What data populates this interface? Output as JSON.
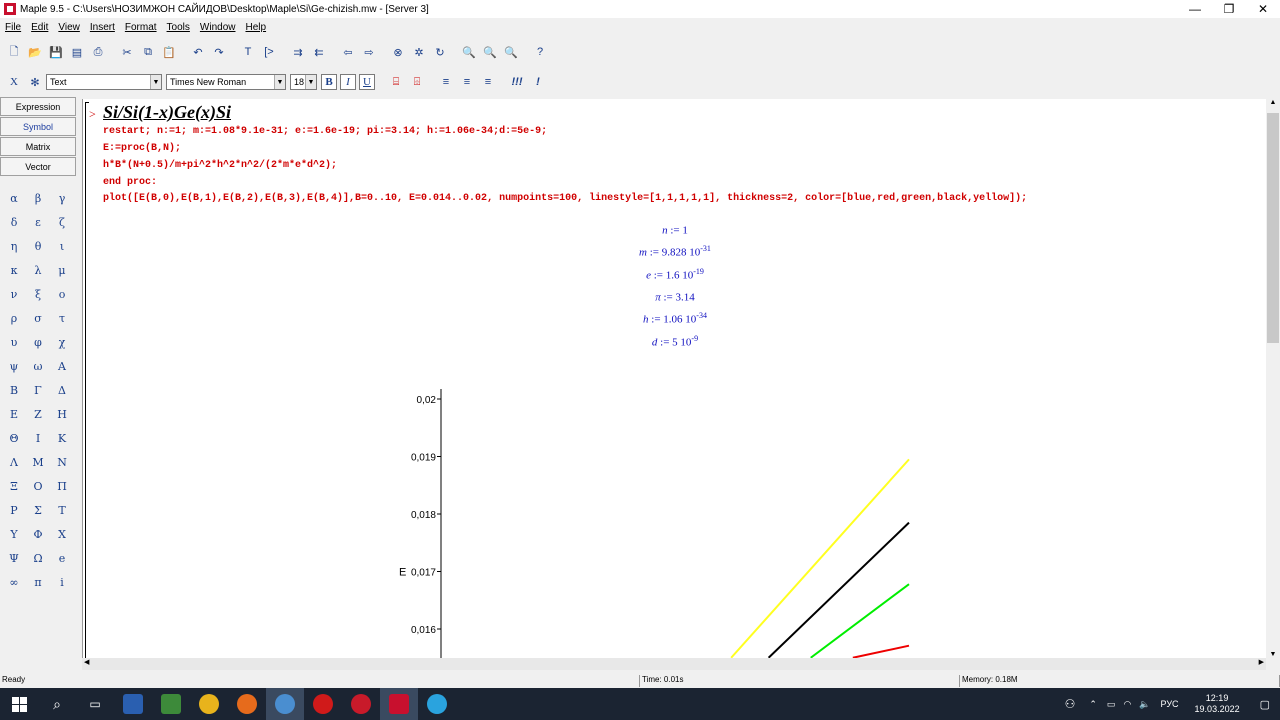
{
  "window": {
    "title": "Maple 9.5 - C:\\Users\\НОЗИМЖОН САЙИДОВ\\Desktop\\Maple\\Si\\Ge-chizish.mw - [Server 3]"
  },
  "menu": [
    "File",
    "Edit",
    "View",
    "Insert",
    "Format",
    "Tools",
    "Window",
    "Help"
  ],
  "format_bar": {
    "style": "Text",
    "font": "Times New Roman",
    "size": "18",
    "bold": "B",
    "italic": "I",
    "underline": "U"
  },
  "palette": {
    "tabs": [
      "Expression",
      "Symbol",
      "Matrix",
      "Vector"
    ],
    "symbols": [
      "α",
      "β",
      "γ",
      "δ",
      "ε",
      "ζ",
      "η",
      "θ",
      "ι",
      "κ",
      "λ",
      "μ",
      "ν",
      "ξ",
      "ο",
      "ρ",
      "σ",
      "τ",
      "υ",
      "φ",
      "χ",
      "ψ",
      "ω",
      "Α",
      "Β",
      "Γ",
      "Δ",
      "Ε",
      "Ζ",
      "Η",
      "Θ",
      "Ι",
      "Κ",
      "Λ",
      "Μ",
      "Ν",
      "Ξ",
      "Ο",
      "Π",
      "Ρ",
      "Σ",
      "Τ",
      "Υ",
      "Φ",
      "Χ",
      "Ψ",
      "Ω",
      "e",
      "∞",
      "π",
      "i"
    ]
  },
  "document": {
    "prompt": ">",
    "heading": "Si/Si(1-x)Ge(x)Si",
    "code": [
      "restart; n:=1; m:=1.08*9.1e-31; e:=1.6e-19; pi:=3.14; h:=1.06e-34;d:=5e-9;",
      "E:=proc(B,N);",
      "h*B*(N+0.5)/m+pi^2*h^2*n^2/(2*m*e*d^2);",
      "end proc:",
      "plot([E(B,0),E(B,1),E(B,2),E(B,3),E(B,4)],B=0..10, E=0.014..0.02, numpoints=100, linestyle=[1,1,1,1,1], thickness=2, color=[blue,red,green,black,yellow]);"
    ],
    "outputs": [
      {
        "lhs": "n",
        "rhs": "1",
        "exp": ""
      },
      {
        "lhs": "m",
        "rhs": "9.828 10",
        "exp": "-31"
      },
      {
        "lhs": "e",
        "rhs": "1.6 10",
        "exp": "-19"
      },
      {
        "lhs": "π",
        "rhs": "3.14",
        "exp": ""
      },
      {
        "lhs": "h",
        "rhs": "1.06 10",
        "exp": "-34"
      },
      {
        "lhs": "d",
        "rhs": "5 10",
        "exp": "-9"
      }
    ]
  },
  "chart_data": {
    "type": "line",
    "ylabel": "E",
    "ytick_labels": [
      "0,02",
      "0,019",
      "0,018",
      "0,017",
      "0,016"
    ],
    "ylim_visible": [
      0.0155,
      0.0202
    ],
    "xlim": [
      0,
      10
    ],
    "series": [
      {
        "color": "#ffff20",
        "x": [
          6.2,
          10
        ],
        "y": [
          0.0155,
          0.01895
        ]
      },
      {
        "color": "#000000",
        "x": [
          7,
          10
        ],
        "y": [
          0.0155,
          0.01785
        ]
      },
      {
        "color": "#00ee00",
        "x": [
          7.9,
          10
        ],
        "y": [
          0.0155,
          0.01678
        ]
      },
      {
        "color": "#ee0000",
        "x": [
          8.8,
          10
        ],
        "y": [
          0.0155,
          0.01571
        ]
      }
    ]
  },
  "status": {
    "ready": "Ready",
    "time": "Time: 0.01s",
    "memory": "Memory: 0.18M"
  },
  "taskbar": {
    "lang": "РУС",
    "time": "12:19",
    "date": "19.03.2022",
    "notif": "1"
  }
}
